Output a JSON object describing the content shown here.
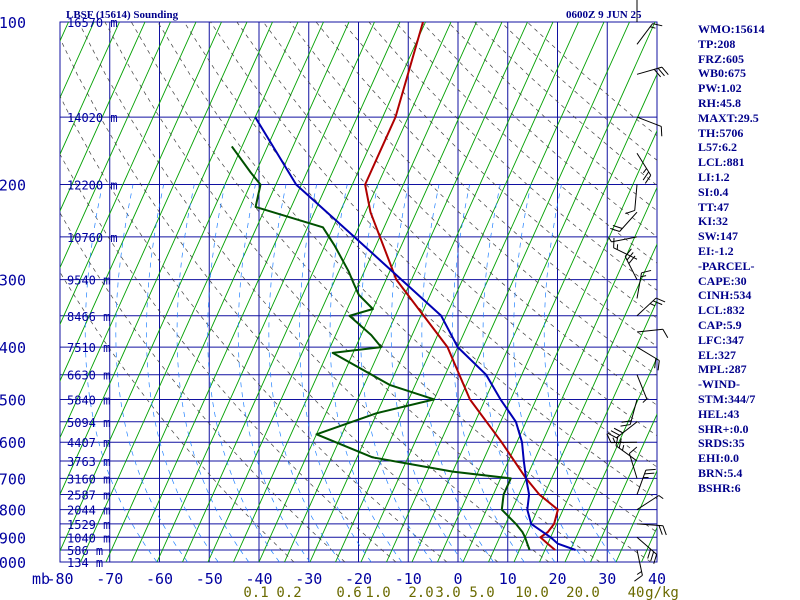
{
  "chart_data": {
    "type": "line",
    "title": "LBSF (15614) Sounding",
    "valid_time": "0600Z  9 JUN 25",
    "xlabel": "",
    "ylabel": "mb",
    "pressure_axis_labels": [
      "100",
      "200",
      "300",
      "400",
      "500",
      "600",
      "700",
      "800",
      "900",
      "1000"
    ],
    "temperature_axis_labels": [
      "-80",
      "-70",
      "-60",
      "-50",
      "-40",
      "-30",
      "-20",
      "-10",
      "0",
      "10",
      "20",
      "30",
      "40"
    ],
    "mixing_ratio_labels": [
      "0.1",
      "0.2",
      "0.6",
      "1.0",
      "2.0",
      "3.0",
      "5.0",
      "10.0",
      "20.0",
      "40",
      "g/kg"
    ],
    "height_labels": [
      "16570 m",
      "14020 m",
      "12200 m",
      "10760 m",
      "9540 m",
      "8466 m",
      "7510 m",
      "6630 m",
      "5840 m",
      "5094 m",
      "4407 m",
      "3763 m",
      "3160 m",
      "2587 m",
      "2044 m",
      "1529 m",
      "1040 m",
      "586 m",
      "134 m"
    ],
    "xlim": [
      -80,
      40
    ],
    "ylim_hPa": [
      1000,
      100
    ],
    "series": [
      {
        "name": "Temperature",
        "color": "#b00000",
        "points": [
          [
            -55.5,
            100
          ],
          [
            -52.5,
            150
          ],
          [
            -52.5,
            200
          ],
          [
            -49,
            225
          ],
          [
            -38,
            300
          ],
          [
            -22,
            400
          ],
          [
            -13,
            500
          ],
          [
            -3,
            600
          ],
          [
            5,
            700
          ],
          [
            9,
            750
          ],
          [
            14,
            800
          ],
          [
            14.5,
            850
          ],
          [
            14,
            880
          ],
          [
            13,
            900
          ],
          [
            15,
            925
          ],
          [
            17,
            950
          ]
        ]
      },
      {
        "name": "Dewpoint",
        "color": "#005000",
        "points": [
          [
            -82,
            170
          ],
          [
            -76,
            190
          ],
          [
            -73,
            200
          ],
          [
            -72,
            220
          ],
          [
            -57,
            240
          ],
          [
            -53,
            260
          ],
          [
            -48,
            290
          ],
          [
            -46,
            305
          ],
          [
            -44,
            320
          ],
          [
            -40,
            340
          ],
          [
            -44,
            350
          ],
          [
            -38,
            380
          ],
          [
            -35,
            400
          ],
          [
            -44,
            410
          ],
          [
            -30,
            470
          ],
          [
            -20,
            500
          ],
          [
            -30,
            530
          ],
          [
            -40,
            580
          ],
          [
            -27,
            640
          ],
          [
            -10,
            680
          ],
          [
            2,
            700
          ],
          [
            2,
            750
          ],
          [
            3,
            800
          ],
          [
            7,
            850
          ],
          [
            9,
            880
          ],
          [
            10,
            900
          ],
          [
            11,
            925
          ],
          [
            12,
            950
          ]
        ]
      },
      {
        "name": "Parcel",
        "color": "#0000b4",
        "points": [
          [
            -80,
            150
          ],
          [
            -66,
            200
          ],
          [
            -50,
            250
          ],
          [
            -37,
            300
          ],
          [
            -26,
            350
          ],
          [
            -20,
            400
          ],
          [
            -12,
            450
          ],
          [
            -7,
            500
          ],
          [
            -2,
            550
          ],
          [
            1,
            600
          ],
          [
            3,
            650
          ],
          [
            5,
            700
          ],
          [
            7,
            750
          ],
          [
            8,
            800
          ],
          [
            10,
            850
          ],
          [
            15,
            900
          ],
          [
            17,
            925
          ],
          [
            21,
            950
          ]
        ]
      }
    ],
    "wind_barbs": "upper-right column",
    "indices": [
      "WMO:15614",
      "TP:208",
      "FRZ:605",
      "WB0:675",
      "PW:1.02",
      "RH:45.8",
      "MAXT:29.5",
      "TH:5706",
      "L57:6.2",
      "LCL:881",
      "LI:1.2",
      "SI:0.4",
      "TT:47",
      "KI:32",
      "SW:147",
      "EI:-1.2",
      "-PARCEL-",
      "CAPE:30",
      "CINH:534",
      "LCL:832",
      "CAP:5.9",
      "LFC:347",
      "EL:327",
      "MPL:287",
      "-WIND-",
      "STM:344/7",
      "HEL:43",
      "SHR+:0.0",
      "SRDS:35",
      "EHI:0.0",
      "BRN:5.4",
      "BSHR:6"
    ],
    "colors": {
      "grid": "#1010a0",
      "isotherm": "#00a000",
      "dry_adiabat": "#404040",
      "mixing_ratio": "#2080ff",
      "axis_text": "#0000a0",
      "mixing_text": "#6a6a00"
    }
  }
}
